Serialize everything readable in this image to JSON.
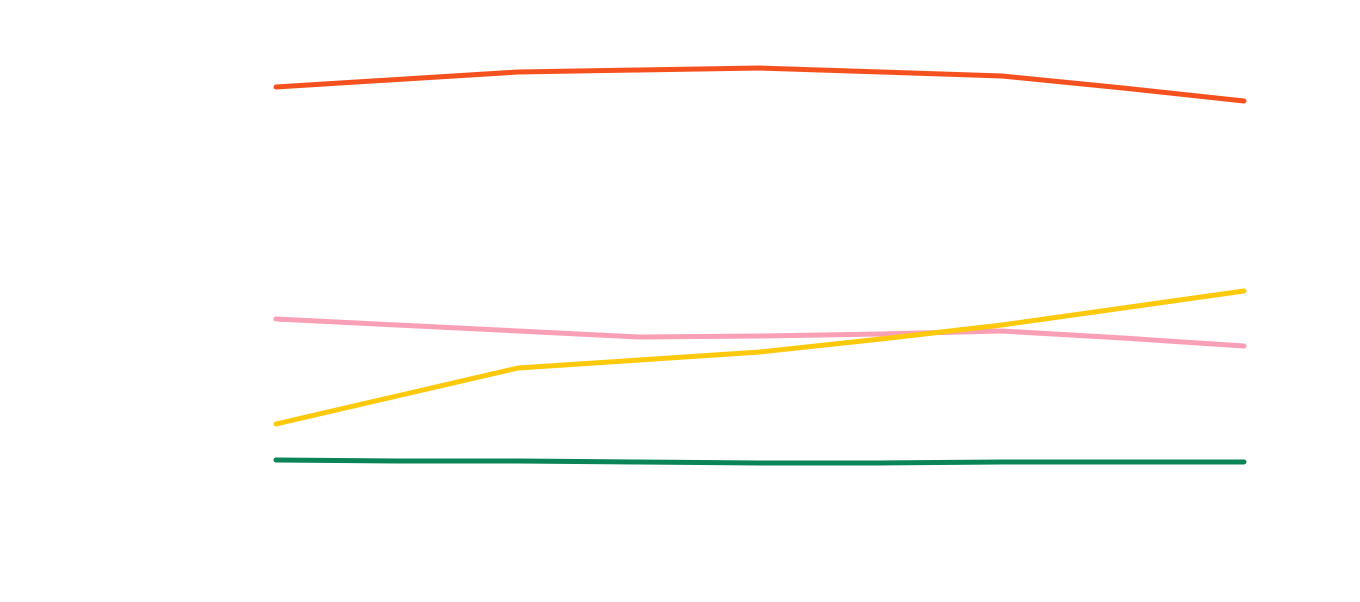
{
  "chart_data": {
    "type": "line",
    "categories": [
      null,
      null,
      null,
      null,
      null,
      null,
      null,
      null,
      null
    ],
    "ylim": [
      0,
      100
    ],
    "series": [
      {
        "color": "#f4511e",
        "values": [
          90.6,
          92.1,
          93.6,
          94,
          94.4,
          93.6,
          92.8,
          90.4,
          87.8
        ]
      },
      {
        "color": "#f99fb6",
        "values": [
          44.2,
          43,
          41.8,
          40.6,
          40.8,
          41.2,
          41.8,
          40.4,
          38.8
        ]
      },
      {
        "color": "#fcc90d",
        "values": [
          23.2,
          28.8,
          34.4,
          36,
          37.6,
          40.2,
          43,
          46.4,
          49.8
        ]
      },
      {
        "color": "#0b8457",
        "values": [
          16,
          15.8,
          15.8,
          15.6,
          15.4,
          15.4,
          15.6,
          15.6,
          15.6
        ]
      }
    ]
  }
}
